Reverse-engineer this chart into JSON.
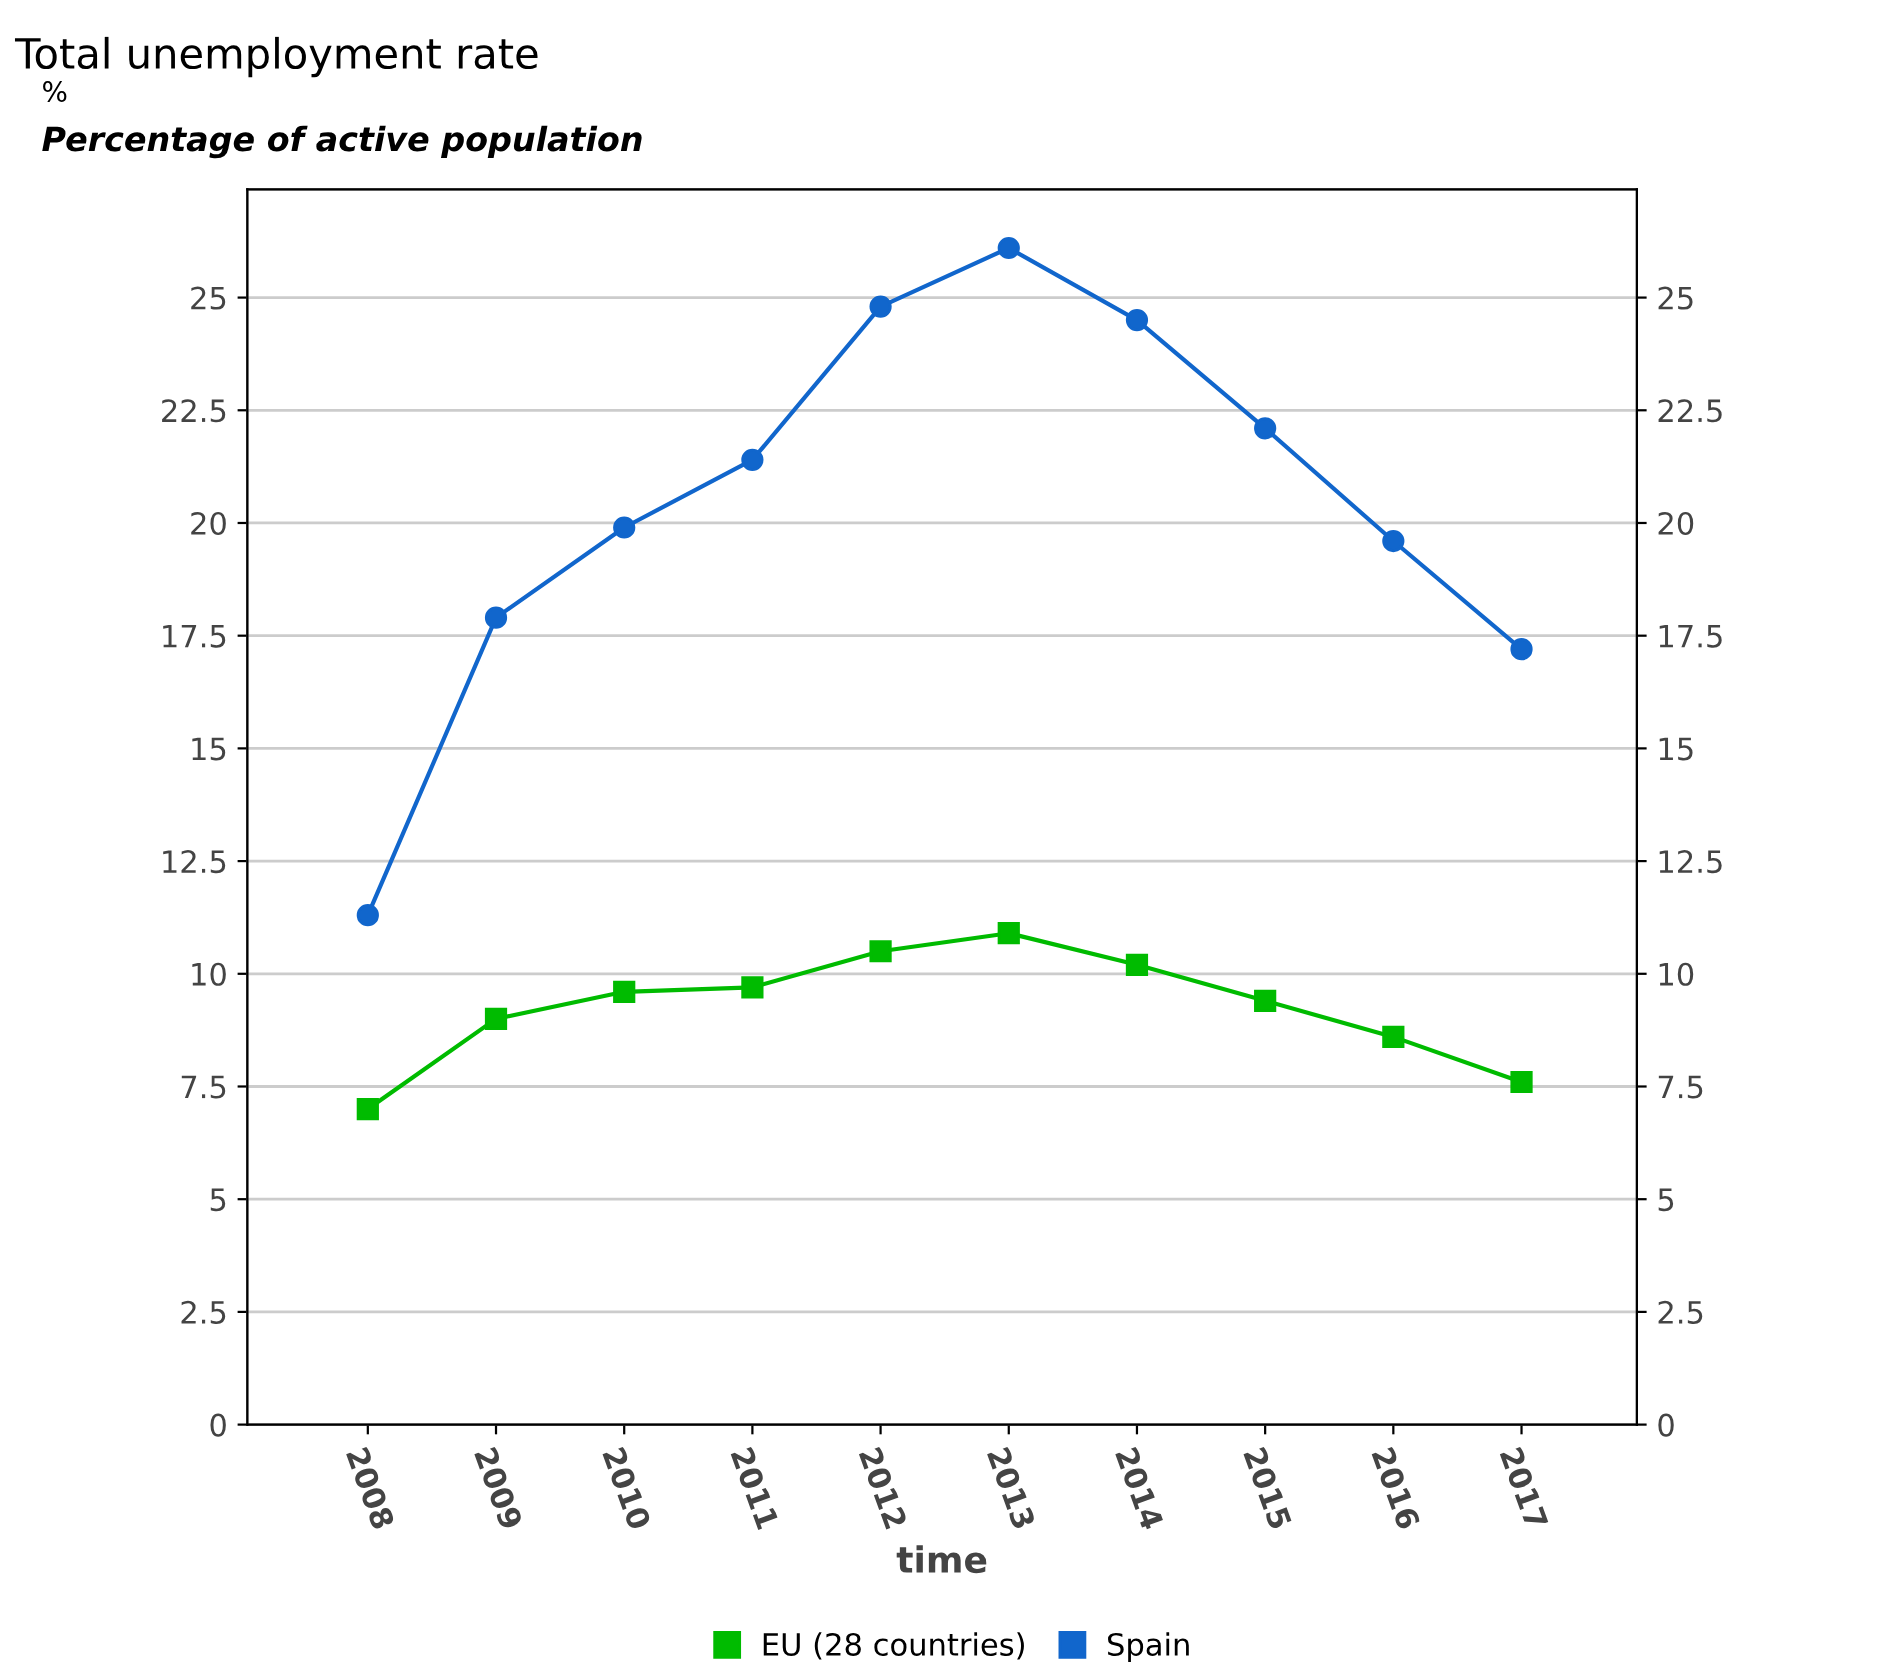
{
  "chart_data": {
    "type": "line",
    "title": "Total unemployment rate",
    "subtitle": "Percentage of active population",
    "annotations": [
      "%"
    ],
    "xlabel": "time",
    "categories": [
      "2008",
      "2009",
      "2010",
      "2011",
      "2012",
      "2013",
      "2014",
      "2015",
      "2016",
      "2017"
    ],
    "series": [
      {
        "name": "EU (28 countries)",
        "color": "#00bb00",
        "marker": "square",
        "values": [
          7.0,
          9.0,
          9.6,
          9.7,
          10.5,
          10.9,
          10.2,
          9.4,
          8.6,
          7.6
        ]
      },
      {
        "name": "Spain",
        "color": "#1166cc",
        "marker": "circle",
        "values": [
          11.3,
          17.9,
          19.9,
          21.4,
          24.8,
          26.1,
          24.5,
          22.1,
          19.6,
          17.2
        ]
      }
    ],
    "ylim": [
      0,
      27.4
    ],
    "yticks": [
      0,
      2.5,
      5,
      7.5,
      10,
      12.5,
      15,
      17.5,
      20,
      22.5,
      25
    ],
    "y2lim": [
      0,
      27.4
    ],
    "y2ticks": [
      0,
      2.5,
      5,
      7.5,
      10,
      12.5,
      15,
      17.5,
      20,
      22.5,
      25
    ],
    "grid": "y",
    "legend": "bottom",
    "line_style": "solid"
  }
}
